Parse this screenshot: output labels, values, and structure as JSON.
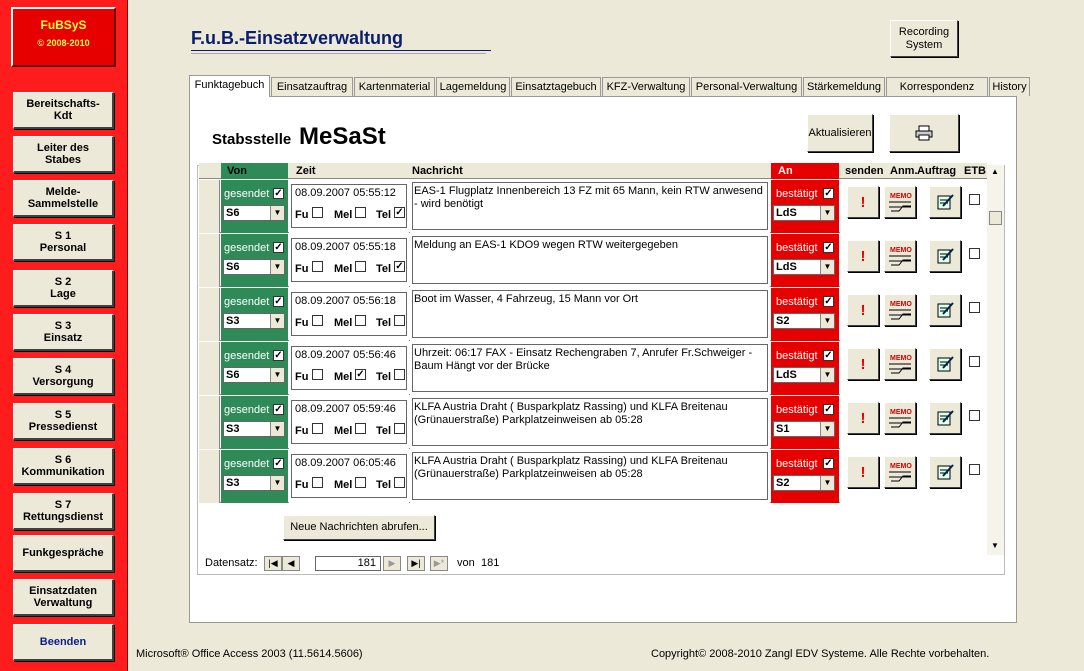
{
  "app": {
    "logo_name": "FuBSyS",
    "logo_years": "© 2008-2010",
    "title": "F.u.B.-Einsatzverwaltung"
  },
  "sidebar": {
    "items": [
      {
        "label": "Bereitschafts-\nKdt"
      },
      {
        "label": "Leiter des\nStabes"
      },
      {
        "label": "Melde-\nSammelstelle"
      },
      {
        "label": "S 1\nPersonal"
      },
      {
        "label": "S 2\nLage"
      },
      {
        "label": "S 3\nEinsatz"
      },
      {
        "label": "S 4\nVersorgung"
      },
      {
        "label": "S 5\nPressedienst"
      },
      {
        "label": "S 6\nKommunikation"
      },
      {
        "label": "S 7\nRettungsdienst"
      },
      {
        "label": "Funkgespräche"
      },
      {
        "label": "Einsatzdaten\nVerwaltung"
      },
      {
        "label": "Beenden"
      }
    ]
  },
  "toolbar": {
    "recording": "Recording\nSystem",
    "refresh": "Aktualisieren",
    "print_icon": "printer-icon"
  },
  "tabs": [
    "Funktagebuch",
    "Einsatzauftrag",
    "Kartenmaterial",
    "Lagemeldung",
    "Einsatztagebuch",
    "KFZ-Verwaltung",
    "Personal-Verwaltung",
    "Stärkemeldung",
    "Korrespondenz",
    "History"
  ],
  "stab": {
    "label": "Stabsstelle",
    "value": "MeSaSt"
  },
  "columns": {
    "von": "Von",
    "zeit": "Zeit",
    "nachricht": "Nachricht",
    "an": "An",
    "senden": "senden",
    "anm": "Anm.",
    "auftrag": "Auftrag",
    "etb": "ETB"
  },
  "row_labels": {
    "gesendet": "gesendet",
    "fu": "Fu",
    "mel": "Mel",
    "tel": "Tel",
    "bestaetigt": "bestätigt",
    "memo": "MEMO"
  },
  "rows": [
    {
      "von": "S6",
      "zeit": "08.09.2007 05:55:12",
      "fu": false,
      "mel": false,
      "tel": true,
      "nachricht": "EAS-1 Flugplatz Innenbereich 13 FZ mit 65 Mann, kein RTW anwesend - wird benötigt",
      "an": "LdS"
    },
    {
      "von": "S6",
      "zeit": "08.09.2007 05:55:18",
      "fu": false,
      "mel": false,
      "tel": true,
      "nachricht": "Meldung an EAS-1 KDO9 wegen RTW weitergegeben",
      "an": "LdS"
    },
    {
      "von": "S3",
      "zeit": "08.09.2007 05:56:18",
      "fu": false,
      "mel": false,
      "tel": false,
      "nachricht": "Boot im Wasser, 4 Fahrzeug, 15 Mann vor Ort",
      "an": "S2"
    },
    {
      "von": "S6",
      "zeit": "08.09.2007 05:56:46",
      "fu": false,
      "mel": true,
      "tel": false,
      "nachricht": "Uhrzeit: 06:17 FAX - Einsatz Rechengraben 7, Anrufer Fr.Schweiger - Baum Hängt vor der Brücke",
      "an": "LdS"
    },
    {
      "von": "S3",
      "zeit": "08.09.2007 05:59:46",
      "fu": false,
      "mel": false,
      "tel": false,
      "nachricht": "KLFA Austria Draht ( Busparkplatz Rassing) und  KLFA Breitenau (Grünauerstraße) Parkplatzeinweisen ab 05:28",
      "an": "S1"
    },
    {
      "von": "S3",
      "zeit": "08.09.2007 06:05:46",
      "fu": false,
      "mel": false,
      "tel": false,
      "nachricht": "KLFA Austria Draht ( Busparkplatz Rassing) und  KLFA Breitenau (Grünauerstraße) Parkplatzeinweisen ab 05:28",
      "an": "S2"
    }
  ],
  "new_messages": "Neue Nachrichten abrufen...",
  "nav": {
    "label": "Datensatz:",
    "current": "181",
    "of": "von",
    "total": "181"
  },
  "status": {
    "left": "Microsoft® Office Access 2003 (11.5614.5606)",
    "right": "Copyright© 2008-2010 Zangl EDV Systeme. Alle Rechte vorbehalten."
  },
  "colors": {
    "sidebar": "#ff1c1c",
    "von": "#2e8b57",
    "an": "#e60000",
    "title": "#0a1e6e"
  }
}
